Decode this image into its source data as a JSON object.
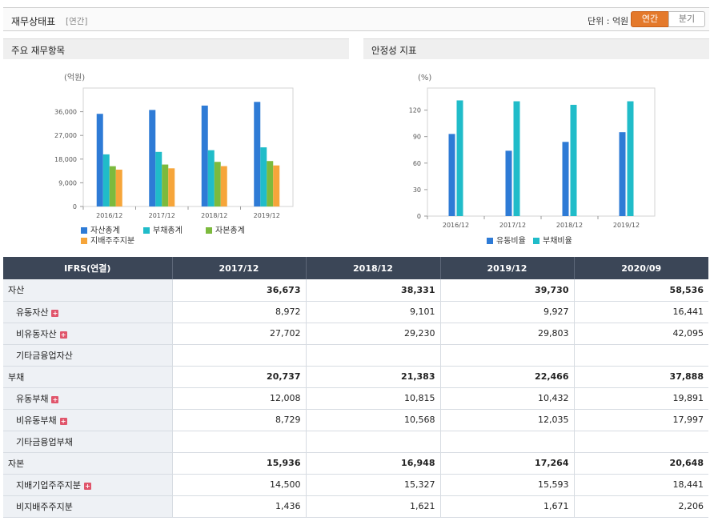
{
  "header": {
    "title": "재무상태표",
    "period": "[연간]",
    "unit": "단위 : 억원",
    "annual_label": "연간",
    "quarter_label": "분기"
  },
  "panels": {
    "left_title": "주요 재무항목",
    "right_title": "안정성 지표"
  },
  "chart_data": [
    {
      "type": "bar",
      "title": "주요 재무항목",
      "ylabel": "(억원)",
      "categories": [
        "2016/12",
        "2017/12",
        "2018/12",
        "2019/12"
      ],
      "ylim": [
        0,
        45000
      ],
      "yticks": [
        0,
        9000,
        18000,
        27000,
        36000
      ],
      "ytick_labels": [
        "0",
        "9,000",
        "18,000",
        "27,000",
        "36,000"
      ],
      "series": [
        {
          "name": "자산총계",
          "color": "#2e7bd6",
          "values": [
            35200,
            36673,
            38331,
            39730
          ]
        },
        {
          "name": "부채총계",
          "color": "#20bcc9",
          "values": [
            19800,
            20737,
            21383,
            22466
          ]
        },
        {
          "name": "자본총계",
          "color": "#7cba3d",
          "values": [
            15300,
            15936,
            16948,
            17264
          ]
        },
        {
          "name": "지배주주지분",
          "color": "#f6a53a",
          "values": [
            14000,
            14500,
            15327,
            15593
          ]
        }
      ],
      "legend": "bottom",
      "grid": false
    },
    {
      "type": "bar",
      "title": "안정성 지표",
      "ylabel": "(%)",
      "categories": [
        "2016/12",
        "2017/12",
        "2018/12",
        "2019/12"
      ],
      "ylim": [
        0,
        145
      ],
      "yticks": [
        0,
        30,
        60,
        90,
        120
      ],
      "ytick_labels": [
        "0",
        "30",
        "60",
        "90",
        "120"
      ],
      "series": [
        {
          "name": "유동비율",
          "color": "#2e7bd6",
          "values": [
            93,
            74,
            84,
            95
          ]
        },
        {
          "name": "부채비율",
          "color": "#20bcc9",
          "values": [
            131,
            130,
            126,
            130
          ]
        }
      ],
      "legend": "bottom",
      "grid": false
    }
  ],
  "table": {
    "headers": [
      "IFRS(연결)",
      "2017/12",
      "2018/12",
      "2019/12",
      "2020/09"
    ],
    "rows": [
      {
        "label": "자산",
        "level": "major",
        "expand": false,
        "values": [
          "36,673",
          "38,331",
          "39,730",
          "58,536"
        ]
      },
      {
        "label": "유동자산",
        "level": "sub",
        "expand": true,
        "values": [
          "8,972",
          "9,101",
          "9,927",
          "16,441"
        ]
      },
      {
        "label": "비유동자산",
        "level": "sub",
        "expand": true,
        "values": [
          "27,702",
          "29,230",
          "29,803",
          "42,095"
        ]
      },
      {
        "label": "기타금융업자산",
        "level": "sub",
        "expand": false,
        "values": [
          "",
          "",
          "",
          ""
        ]
      },
      {
        "label": "부채",
        "level": "major",
        "expand": false,
        "values": [
          "20,737",
          "21,383",
          "22,466",
          "37,888"
        ]
      },
      {
        "label": "유동부채",
        "level": "sub",
        "expand": true,
        "values": [
          "12,008",
          "10,815",
          "10,432",
          "19,891"
        ]
      },
      {
        "label": "비유동부채",
        "level": "sub",
        "expand": true,
        "values": [
          "8,729",
          "10,568",
          "12,035",
          "17,997"
        ]
      },
      {
        "label": "기타금융업부채",
        "level": "sub",
        "expand": false,
        "values": [
          "",
          "",
          "",
          ""
        ]
      },
      {
        "label": "자본",
        "level": "major",
        "expand": false,
        "values": [
          "15,936",
          "16,948",
          "17,264",
          "20,648"
        ]
      },
      {
        "label": "지배기업주주지분",
        "level": "sub",
        "expand": true,
        "values": [
          "14,500",
          "15,327",
          "15,593",
          "18,441"
        ]
      },
      {
        "label": "비지배주주지분",
        "level": "sub",
        "expand": false,
        "values": [
          "1,436",
          "1,621",
          "1,671",
          "2,206"
        ]
      }
    ]
  }
}
